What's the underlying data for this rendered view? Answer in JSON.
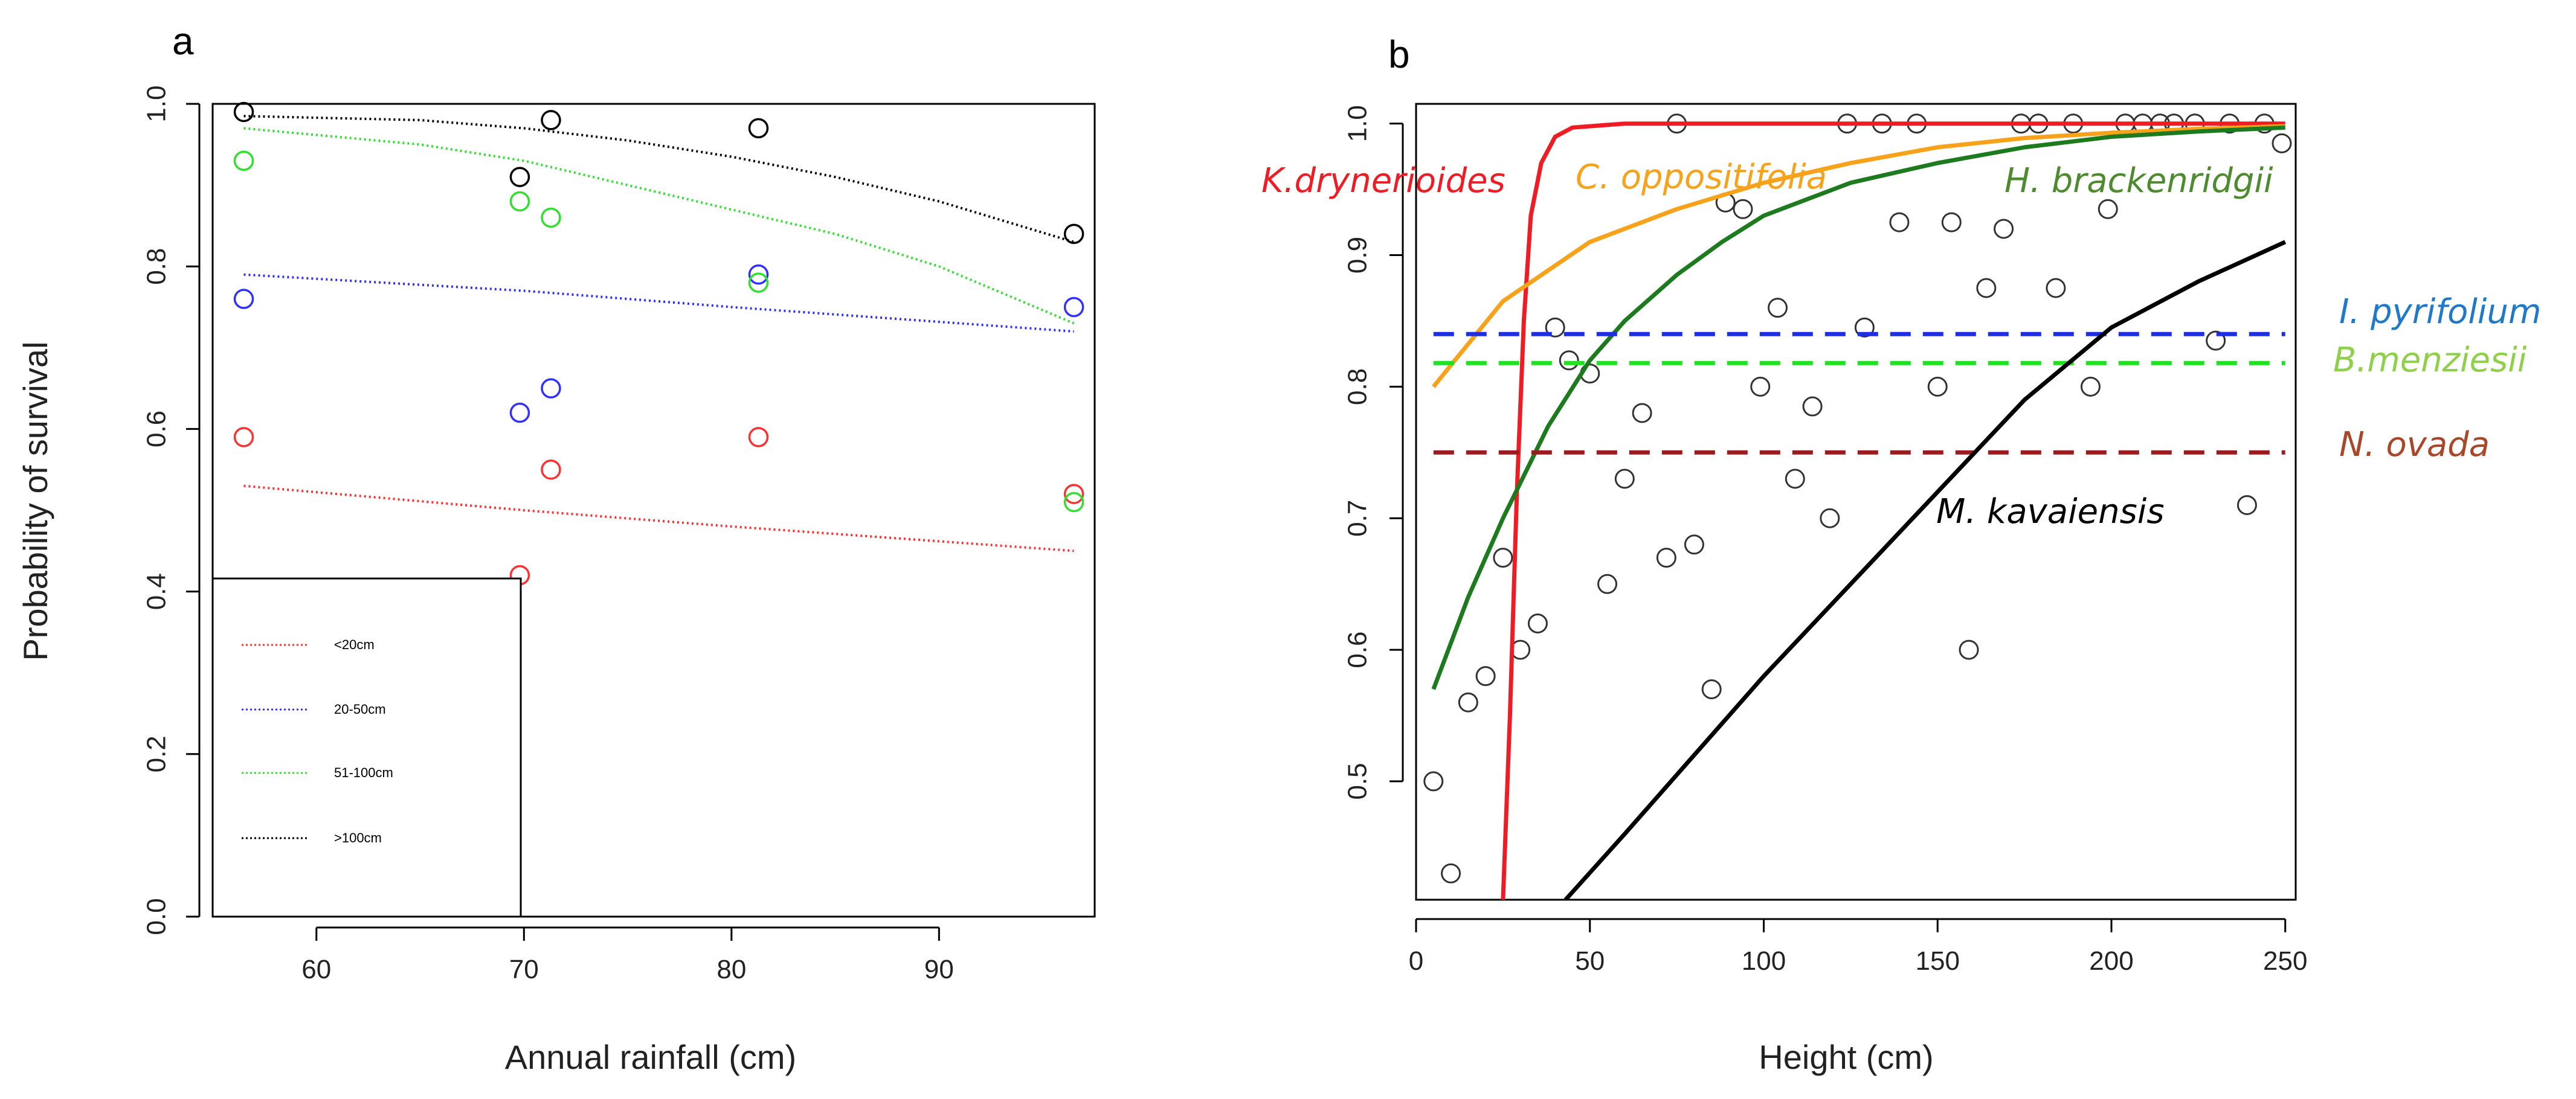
{
  "chart_data": [
    {
      "panel_label": "a",
      "type": "scatter",
      "xlabel": "Annual rainfall (cm)",
      "ylabel": "Probability of survival",
      "xlim": [
        55,
        97.5
      ],
      "ylim": [
        0,
        1.0
      ],
      "x_ticks": [
        60,
        70,
        80,
        90
      ],
      "y_ticks": [
        0.0,
        0.2,
        0.4,
        0.6,
        0.8,
        1.0
      ],
      "y_tick_labels": [
        "0.0",
        "0.2",
        "0.4",
        "0.6",
        "0.8",
        "1.0"
      ],
      "grid": false,
      "legend_position": "bottom-left",
      "series": [
        {
          "name": "<20cm",
          "color": "#ff3030",
          "points": [
            [
              56.5,
              0.59
            ],
            [
              69.8,
              0.42
            ],
            [
              71.3,
              0.55
            ],
            [
              81.3,
              0.59
            ],
            [
              96.5,
              0.52
            ]
          ],
          "fit": [
            [
              56.5,
              0.53
            ],
            [
              70,
              0.5
            ],
            [
              80,
              0.48
            ],
            [
              96.5,
              0.45
            ]
          ]
        },
        {
          "name": "20-50cm",
          "color": "#3030ff",
          "points": [
            [
              56.5,
              0.76
            ],
            [
              69.8,
              0.62
            ],
            [
              71.3,
              0.65
            ],
            [
              81.3,
              0.79
            ],
            [
              96.5,
              0.75
            ]
          ],
          "fit": [
            [
              56.5,
              0.79
            ],
            [
              70,
              0.77
            ],
            [
              80,
              0.75
            ],
            [
              96.5,
              0.72
            ]
          ]
        },
        {
          "name": "51-100cm",
          "color": "#30e030",
          "points": [
            [
              56.5,
              0.93
            ],
            [
              69.8,
              0.88
            ],
            [
              71.3,
              0.86
            ],
            [
              81.3,
              0.78
            ],
            [
              96.5,
              0.51
            ]
          ],
          "fit": [
            [
              56.5,
              0.97
            ],
            [
              65,
              0.95
            ],
            [
              70,
              0.93
            ],
            [
              75,
              0.9
            ],
            [
              80,
              0.87
            ],
            [
              85,
              0.84
            ],
            [
              90,
              0.8
            ],
            [
              96.5,
              0.73
            ]
          ]
        },
        {
          "name": ">100cm",
          "color": "#000000",
          "points": [
            [
              56.5,
              0.99
            ],
            [
              69.8,
              0.91
            ],
            [
              71.3,
              0.98
            ],
            [
              81.3,
              0.97
            ],
            [
              96.5,
              0.84
            ]
          ],
          "fit": [
            [
              56.5,
              0.985
            ],
            [
              65,
              0.98
            ],
            [
              70,
              0.97
            ],
            [
              75,
              0.955
            ],
            [
              80,
              0.935
            ],
            [
              85,
              0.91
            ],
            [
              90,
              0.88
            ],
            [
              96.5,
              0.83
            ]
          ]
        }
      ]
    },
    {
      "panel_label": "b",
      "type": "scatter",
      "xlabel": "Height (cm)",
      "ylabel": "",
      "xlim": [
        0,
        253
      ],
      "ylim": [
        0.41,
        1.015
      ],
      "x_ticks": [
        0,
        50,
        100,
        150,
        200,
        250
      ],
      "y_ticks": [
        0.5,
        0.6,
        0.7,
        0.8,
        0.9,
        1.0
      ],
      "y_tick_labels": [
        "0.5",
        "0.6",
        "0.7",
        "0.8",
        "0.9",
        "1.0"
      ],
      "grid": false,
      "points": [
        [
          5,
          0.5
        ],
        [
          10,
          0.43
        ],
        [
          15,
          0.56
        ],
        [
          20,
          0.58
        ],
        [
          25,
          0.67
        ],
        [
          30,
          0.6
        ],
        [
          35,
          0.62
        ],
        [
          40,
          0.845
        ],
        [
          44,
          0.82
        ],
        [
          50,
          0.81
        ],
        [
          55,
          0.65
        ],
        [
          60,
          0.73
        ],
        [
          65,
          0.78
        ],
        [
          72,
          0.67
        ],
        [
          75,
          1.0
        ],
        [
          80,
          0.68
        ],
        [
          85,
          0.57
        ],
        [
          89,
          0.94
        ],
        [
          94,
          0.935
        ],
        [
          99,
          0.8
        ],
        [
          104,
          0.86
        ],
        [
          109,
          0.73
        ],
        [
          114,
          0.785
        ],
        [
          119,
          0.7
        ],
        [
          124,
          1.0
        ],
        [
          129,
          0.845
        ],
        [
          134,
          1.0
        ],
        [
          139,
          0.925
        ],
        [
          144,
          1.0
        ],
        [
          150,
          0.8
        ],
        [
          154,
          0.925
        ],
        [
          159,
          0.6
        ],
        [
          164,
          0.875
        ],
        [
          169,
          0.92
        ],
        [
          174,
          1.0
        ],
        [
          179,
          1.0
        ],
        [
          184,
          0.875
        ],
        [
          189,
          1.0
        ],
        [
          194,
          0.8
        ],
        [
          199,
          0.935
        ],
        [
          204,
          1.0
        ],
        [
          209,
          1.0
        ],
        [
          214,
          1.0
        ],
        [
          218,
          1.0
        ],
        [
          224,
          1.0
        ],
        [
          230,
          0.835
        ],
        [
          234,
          1.0
        ],
        [
          239,
          0.71
        ],
        [
          244,
          1.0
        ],
        [
          249,
          0.985
        ]
      ],
      "curves": [
        {
          "name": "K.drynerioides",
          "color": "#ee1c25",
          "style": "solid",
          "points": [
            [
              25,
              0.41
            ],
            [
              27,
              0.55
            ],
            [
              29,
              0.72
            ],
            [
              31,
              0.85
            ],
            [
              33,
              0.93
            ],
            [
              36,
              0.97
            ],
            [
              40,
              0.99
            ],
            [
              45,
              0.997
            ],
            [
              60,
              1.0
            ],
            [
              250,
              1.0
            ]
          ]
        },
        {
          "name": "C. oppositifolia",
          "color": "#f7a21b",
          "style": "solid",
          "points": [
            [
              5,
              0.8
            ],
            [
              25,
              0.865
            ],
            [
              50,
              0.91
            ],
            [
              75,
              0.935
            ],
            [
              100,
              0.955
            ],
            [
              125,
              0.97
            ],
            [
              150,
              0.982
            ],
            [
              175,
              0.989
            ],
            [
              200,
              0.993
            ],
            [
              225,
              0.996
            ],
            [
              250,
              0.998
            ]
          ]
        },
        {
          "name": "H. brackenridgii",
          "color": "#1e7a1e",
          "style": "solid",
          "points": [
            [
              5,
              0.57
            ],
            [
              15,
              0.64
            ],
            [
              25,
              0.7
            ],
            [
              38,
              0.77
            ],
            [
              50,
              0.82
            ],
            [
              60,
              0.85
            ],
            [
              75,
              0.885
            ],
            [
              88,
              0.91
            ],
            [
              100,
              0.93
            ],
            [
              125,
              0.955
            ],
            [
              150,
              0.97
            ],
            [
              175,
              0.982
            ],
            [
              200,
              0.99
            ],
            [
              225,
              0.994
            ],
            [
              250,
              0.997
            ]
          ]
        },
        {
          "name": "I. pyrifolium",
          "color": "#1e2fe0",
          "style": "dashed",
          "points": [
            [
              5,
              0.84
            ],
            [
              250,
              0.84
            ]
          ]
        },
        {
          "name": "B.menziesii",
          "color": "#22e022",
          "style": "dashed",
          "points": [
            [
              5,
              0.818
            ],
            [
              250,
              0.818
            ]
          ]
        },
        {
          "name": "N. ovada",
          "color": "#9b1c1c",
          "style": "dashed",
          "points": [
            [
              5,
              0.75
            ],
            [
              250,
              0.75
            ]
          ]
        },
        {
          "name": "M. kavaiensis",
          "color": "#000000",
          "style": "solid",
          "points": [
            [
              43,
              0.41
            ],
            [
              60,
              0.46
            ],
            [
              80,
              0.52
            ],
            [
              100,
              0.58
            ],
            [
              125,
              0.65
            ],
            [
              150,
              0.72
            ],
            [
              175,
              0.79
            ],
            [
              200,
              0.845
            ],
            [
              225,
              0.88
            ],
            [
              250,
              0.91
            ]
          ]
        }
      ]
    }
  ]
}
